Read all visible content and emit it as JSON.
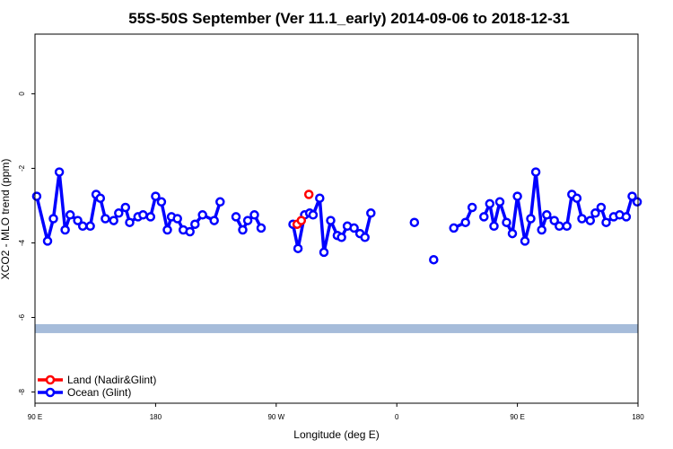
{
  "chart_data": {
    "type": "line",
    "title": "55S-50S September (Ver 11.1_early)   2014-09-06 to 2018-12-31",
    "xlabel": "Longitude (deg E)",
    "ylabel": "XCO2 - MLO trend (ppm)",
    "xlim": [
      90,
      450
    ],
    "ylim": [
      -8.3,
      1.6
    ],
    "x_ticks": [
      {
        "value": 90,
        "label": "90 E"
      },
      {
        "value": 162,
        "label": "180"
      },
      {
        "value": 234,
        "label": "90 W"
      },
      {
        "value": 306,
        "label": "0"
      },
      {
        "value": 378,
        "label": "90 E"
      },
      {
        "value": 450,
        "label": "180"
      }
    ],
    "y_ticks": [
      {
        "value": 0,
        "label": "0"
      },
      {
        "value": -2,
        "label": "-2"
      },
      {
        "value": -4,
        "label": "-4"
      },
      {
        "value": -6,
        "label": "-6"
      },
      {
        "value": -8,
        "label": "-8"
      }
    ],
    "legend_position": "bottom-left",
    "band": {
      "y_range": [
        -6.42,
        -6.18
      ],
      "color": "#a6bcda"
    },
    "series": [
      {
        "name": "Land (Nadir&Glint)",
        "color": "#ff0000",
        "segments": [
          [
            [
              246.5,
              -3.5
            ],
            [
              249,
              -3.4
            ]
          ],
          [
            [
              253.5,
              -2.7
            ]
          ]
        ]
      },
      {
        "name": "Ocean (Glint)",
        "color": "#0000ff",
        "segments": [
          [
            [
              91,
              -2.75
            ],
            [
              97.5,
              -3.95
            ],
            [
              101,
              -3.35
            ],
            [
              104.5,
              -2.1
            ],
            [
              108,
              -3.65
            ],
            [
              111,
              -3.25
            ],
            [
              115.5,
              -3.4
            ],
            [
              118.5,
              -3.55
            ],
            [
              123,
              -3.55
            ],
            [
              126.5,
              -2.7
            ],
            [
              129,
              -2.8
            ],
            [
              132,
              -3.35
            ],
            [
              137,
              -3.4
            ],
            [
              140,
              -3.2
            ],
            [
              144,
              -3.05
            ],
            [
              146.5,
              -3.45
            ],
            [
              151.5,
              -3.3
            ],
            [
              154.5,
              -3.25
            ],
            [
              159,
              -3.3
            ],
            [
              162,
              -2.75
            ],
            [
              165.5,
              -2.9
            ],
            [
              169,
              -3.65
            ],
            [
              171.5,
              -3.3
            ],
            [
              175,
              -3.35
            ],
            [
              178.5,
              -3.65
            ],
            [
              182.5,
              -3.7
            ],
            [
              185.5,
              -3.5
            ],
            [
              190,
              -3.25
            ],
            [
              197,
              -3.4
            ],
            [
              200.5,
              -2.9
            ]
          ],
          [
            [
              210,
              -3.3
            ],
            [
              214,
              -3.65
            ],
            [
              217,
              -3.4
            ],
            [
              221,
              -3.25
            ],
            [
              225,
              -3.6
            ]
          ],
          [
            [
              244,
              -3.5
            ],
            [
              247,
              -4.15
            ],
            [
              251,
              -3.25
            ],
            [
              254,
              -3.2
            ],
            [
              256,
              -3.25
            ],
            [
              260,
              -2.8
            ],
            [
              262.5,
              -4.25
            ],
            [
              266.5,
              -3.4
            ],
            [
              270.5,
              -3.8
            ],
            [
              273,
              -3.85
            ],
            [
              276.5,
              -3.55
            ],
            [
              280.5,
              -3.6
            ],
            [
              284,
              -3.75
            ],
            [
              287,
              -3.85
            ],
            [
              290.5,
              -3.2
            ]
          ],
          [
            [
              316.5,
              -3.45
            ]
          ],
          [
            [
              328,
              -4.45
            ]
          ],
          [
            [
              340,
              -3.6
            ],
            [
              347,
              -3.45
            ],
            [
              351,
              -3.05
            ]
          ],
          [
            [
              358,
              -3.3
            ],
            [
              361.5,
              -2.95
            ],
            [
              364,
              -3.55
            ],
            [
              367.5,
              -2.9
            ],
            [
              371.5,
              -3.45
            ],
            [
              375,
              -3.75
            ],
            [
              378,
              -2.75
            ],
            [
              382.5,
              -3.95
            ],
            [
              386,
              -3.35
            ],
            [
              389,
              -2.1
            ],
            [
              392.5,
              -3.65
            ],
            [
              395.5,
              -3.25
            ],
            [
              400,
              -3.4
            ],
            [
              403,
              -3.55
            ],
            [
              407.5,
              -3.55
            ],
            [
              410.5,
              -2.7
            ],
            [
              413.5,
              -2.8
            ],
            [
              416.5,
              -3.35
            ],
            [
              421.5,
              -3.4
            ],
            [
              424.5,
              -3.2
            ],
            [
              428,
              -3.05
            ],
            [
              431,
              -3.45
            ],
            [
              435.5,
              -3.3
            ],
            [
              439,
              -3.25
            ],
            [
              443,
              -3.3
            ],
            [
              446.5,
              -2.75
            ],
            [
              449.5,
              -2.9
            ]
          ]
        ]
      }
    ]
  }
}
